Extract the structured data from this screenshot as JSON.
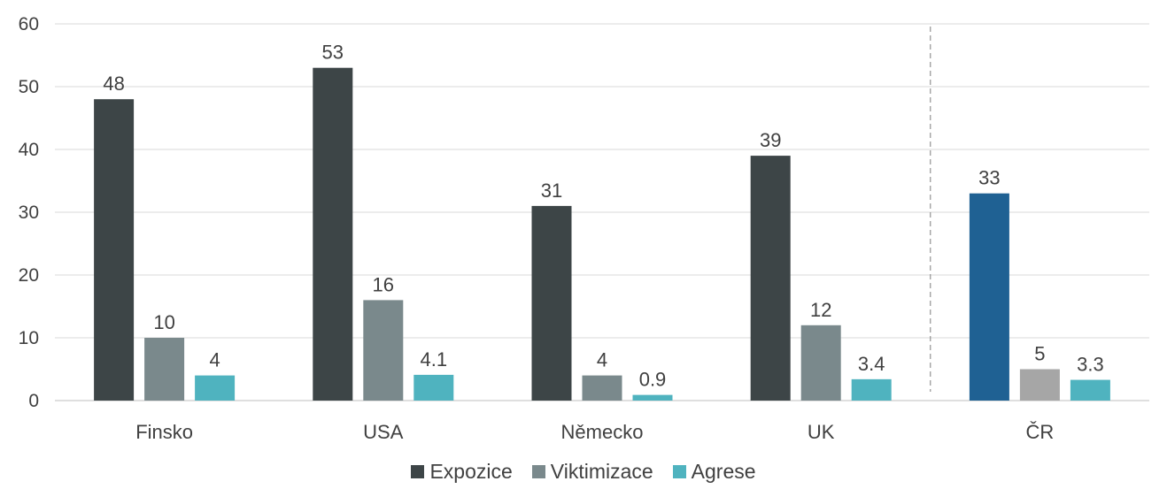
{
  "chart_data": {
    "type": "bar",
    "categories": [
      "Finsko",
      "USA",
      "Německo",
      "UK",
      "ČR"
    ],
    "series": [
      {
        "name": "Expozice",
        "values": [
          48,
          53,
          31,
          39,
          33
        ],
        "labels": [
          "48",
          "53",
          "31",
          "39",
          "33"
        ],
        "color": "#3d4547"
      },
      {
        "name": "Viktimizace",
        "values": [
          10,
          16,
          4,
          12,
          5
        ],
        "labels": [
          "10",
          "16",
          "4",
          "12",
          "5"
        ],
        "color": "#7a898c"
      },
      {
        "name": "Agrese",
        "values": [
          4,
          4.1,
          0.9,
          3.4,
          3.3
        ],
        "labels": [
          "4",
          "4.1",
          "0.9",
          "3.4",
          "3.3"
        ],
        "color": "#4fb3bf"
      }
    ],
    "highlight": {
      "category": "ČR",
      "colors": [
        "#1f6193",
        "#a6a6a6",
        "#4fb3bf"
      ]
    },
    "ylim": [
      0,
      60
    ],
    "yticks": [
      0,
      10,
      20,
      30,
      40,
      50,
      60
    ],
    "grid": true,
    "separator_before": "ČR",
    "legend_position": "bottom",
    "title": "",
    "xlabel": "",
    "ylabel": ""
  }
}
